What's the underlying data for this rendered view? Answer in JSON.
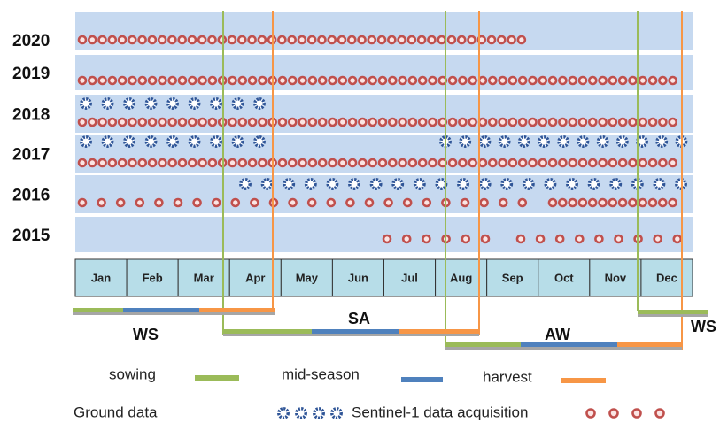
{
  "years": [
    "2020",
    "2019",
    "2018",
    "2017",
    "2016",
    "2015"
  ],
  "months": [
    "Jan",
    "Feb",
    "Mar",
    "Apr",
    "May",
    "Jun",
    "Jul",
    "Aug",
    "Sep",
    "Oct",
    "Nov",
    "Dec"
  ],
  "seasons": [
    "WS",
    "SA",
    "AW",
    "WS"
  ],
  "legend": {
    "sowing": "sowing",
    "mid_season": "mid-season",
    "harvest": "harvest",
    "ground": "Ground data",
    "sentinel": "Sentinel-1 data acquisition"
  }
}
